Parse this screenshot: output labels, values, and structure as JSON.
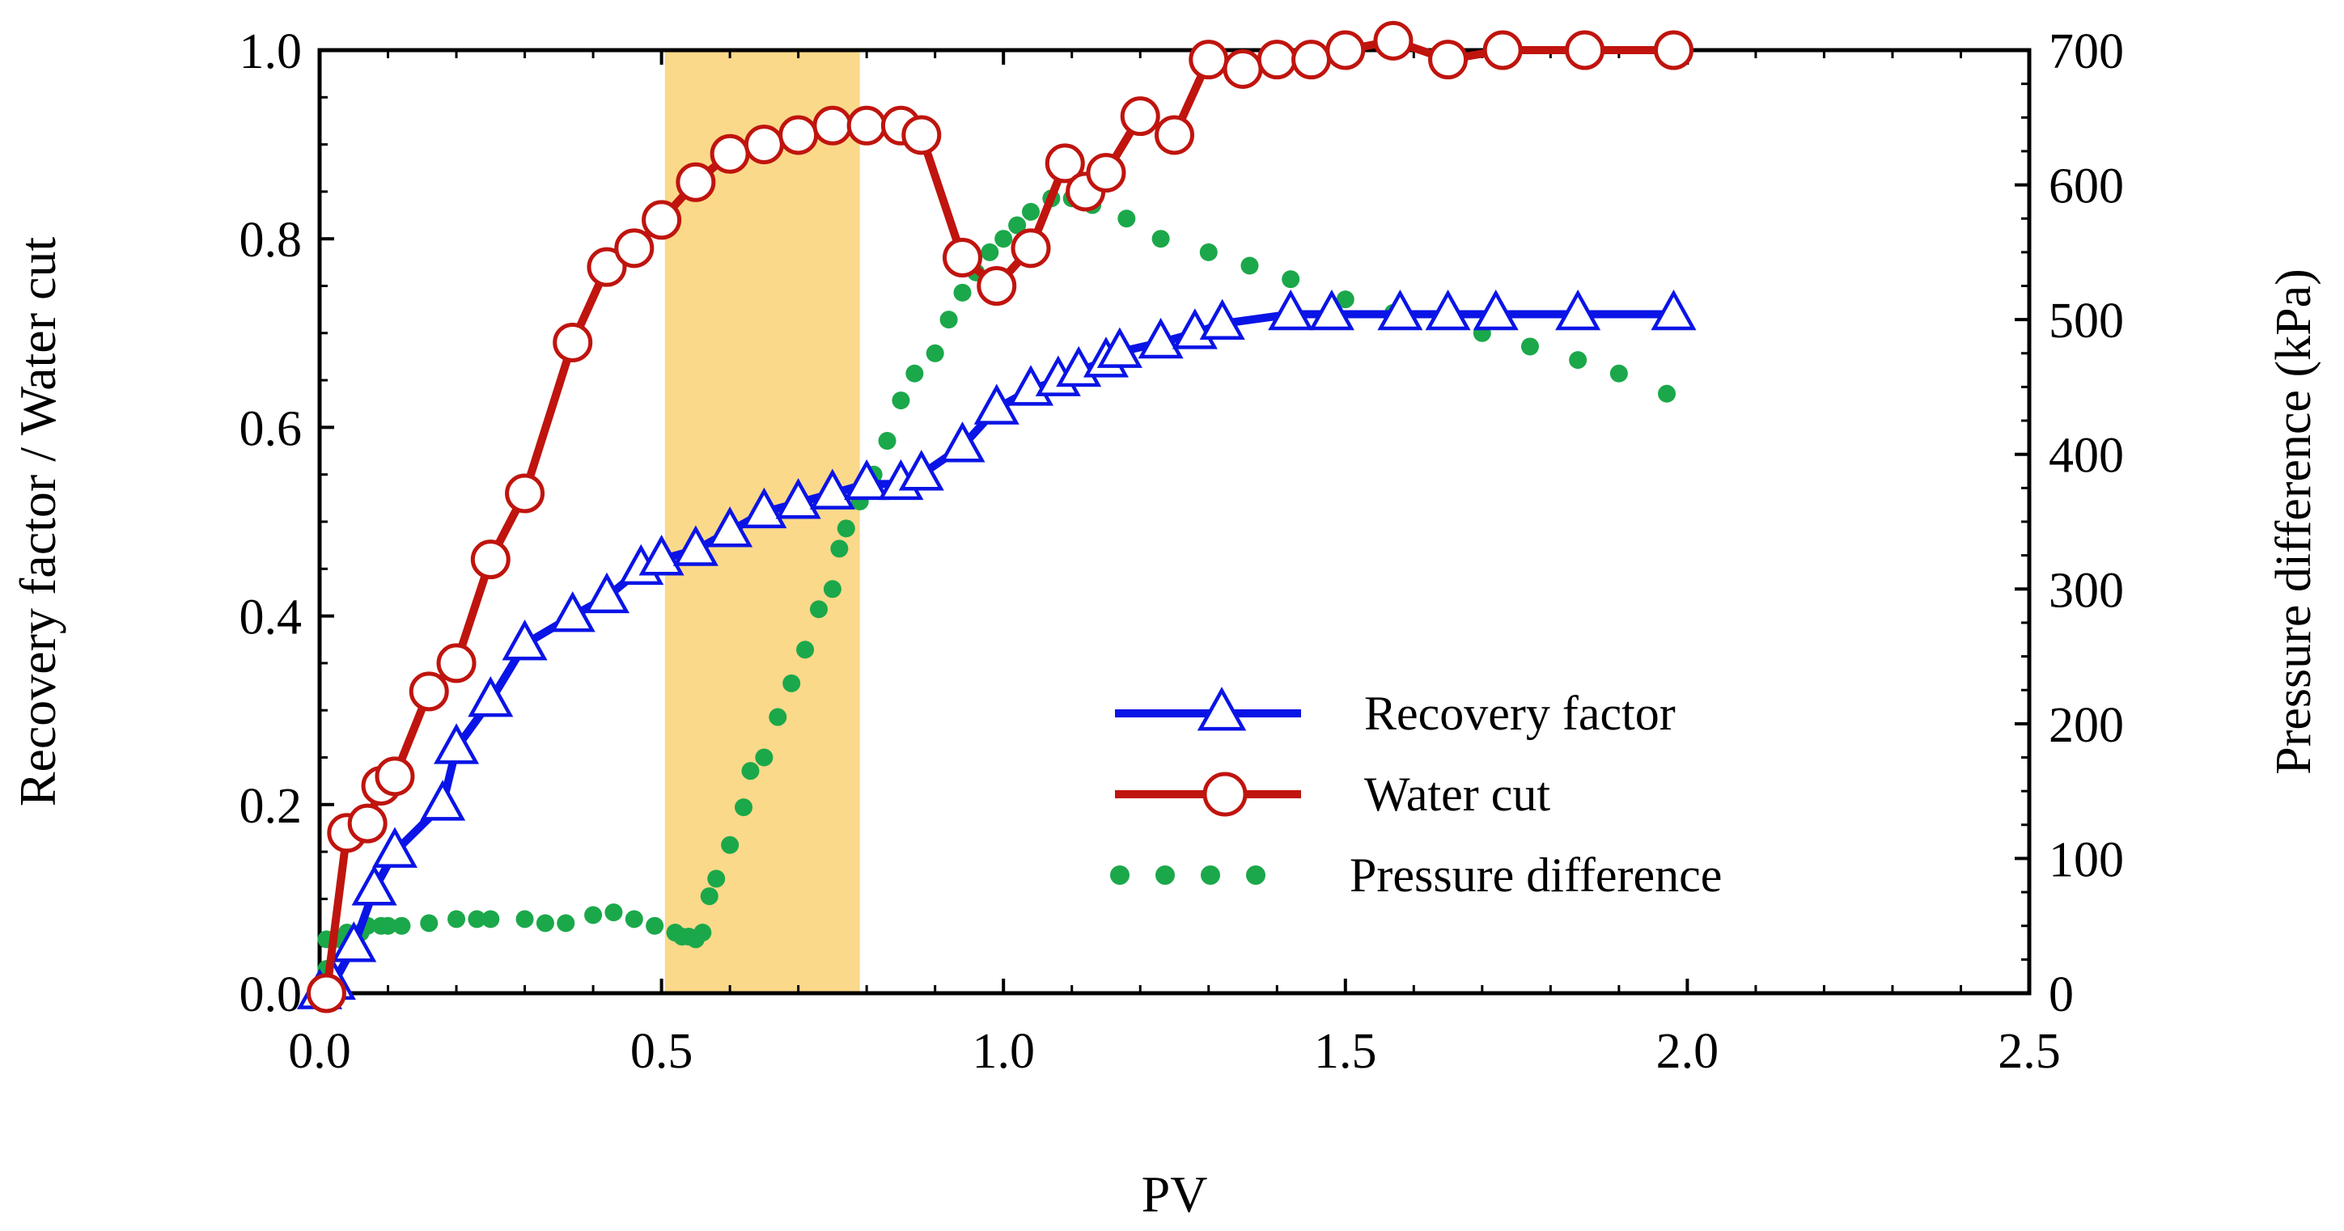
{
  "chart_data": {
    "type": "line",
    "title": "",
    "xlabel": "PV",
    "ylabel_left": "Recovery factor / Water cut",
    "ylabel_right": "Pressure difference (kPa)",
    "xlim": [
      0.0,
      2.5
    ],
    "ylim_left": [
      0.0,
      1.0
    ],
    "ylim_right": [
      0,
      700
    ],
    "x_ticks": [
      "0.0",
      "0.5",
      "1.0",
      "1.5",
      "2.0",
      "2.5"
    ],
    "y_left_ticks": [
      "0.0",
      "0.2",
      "0.4",
      "0.6",
      "0.8",
      "1.0"
    ],
    "y_right_ticks": [
      "0",
      "100",
      "200",
      "300",
      "400",
      "500",
      "600",
      "700"
    ],
    "highlight_band": {
      "x_start": 0.505,
      "x_end": 0.79,
      "color": "#fbd98a"
    },
    "legend_position": "lower-right",
    "series": [
      {
        "name": "Recovery factor",
        "axis": "left",
        "color": "#0a14e6",
        "marker": "triangle",
        "x": [
          0.0,
          0.02,
          0.05,
          0.08,
          0.11,
          0.18,
          0.2,
          0.25,
          0.3,
          0.37,
          0.42,
          0.47,
          0.5,
          0.55,
          0.6,
          0.65,
          0.7,
          0.75,
          0.8,
          0.85,
          0.88,
          0.94,
          0.99,
          1.04,
          1.08,
          1.11,
          1.15,
          1.17,
          1.23,
          1.28,
          1.32,
          1.42,
          1.48,
          1.58,
          1.65,
          1.72,
          1.84,
          1.98
        ],
        "values": [
          0.0,
          0.01,
          0.05,
          0.11,
          0.15,
          0.2,
          0.26,
          0.31,
          0.37,
          0.4,
          0.42,
          0.45,
          0.46,
          0.47,
          0.49,
          0.51,
          0.52,
          0.53,
          0.54,
          0.54,
          0.55,
          0.58,
          0.62,
          0.64,
          0.65,
          0.66,
          0.67,
          0.68,
          0.69,
          0.7,
          0.71,
          0.72,
          0.72,
          0.72,
          0.72,
          0.72,
          0.72,
          0.72
        ]
      },
      {
        "name": "Water cut",
        "axis": "left",
        "color": "#c0140e",
        "marker": "circle",
        "x": [
          0.01,
          0.04,
          0.07,
          0.09,
          0.11,
          0.16,
          0.2,
          0.25,
          0.3,
          0.37,
          0.42,
          0.46,
          0.5,
          0.55,
          0.6,
          0.65,
          0.7,
          0.75,
          0.8,
          0.85,
          0.88,
          0.94,
          0.99,
          1.04,
          1.09,
          1.12,
          1.15,
          1.2,
          1.25,
          1.3,
          1.35,
          1.4,
          1.45,
          1.5,
          1.57,
          1.65,
          1.73,
          1.85,
          1.98
        ],
        "values": [
          0.0,
          0.17,
          0.18,
          0.22,
          0.23,
          0.32,
          0.35,
          0.46,
          0.53,
          0.69,
          0.77,
          0.79,
          0.82,
          0.86,
          0.89,
          0.9,
          0.91,
          0.92,
          0.92,
          0.92,
          0.91,
          0.78,
          0.75,
          0.79,
          0.88,
          0.85,
          0.87,
          0.93,
          0.91,
          0.99,
          0.98,
          0.99,
          0.99,
          1.0,
          1.01,
          0.99,
          1.0,
          1.0,
          1.0
        ]
      },
      {
        "name": "Pressure difference",
        "axis": "right",
        "color": "#1ba84a",
        "marker": "dot",
        "x": [
          0.01,
          0.01,
          0.03,
          0.04,
          0.06,
          0.07,
          0.09,
          0.1,
          0.12,
          0.16,
          0.2,
          0.23,
          0.25,
          0.3,
          0.33,
          0.36,
          0.4,
          0.43,
          0.46,
          0.49,
          0.52,
          0.53,
          0.54,
          0.55,
          0.56,
          0.57,
          0.58,
          0.6,
          0.62,
          0.63,
          0.65,
          0.67,
          0.69,
          0.71,
          0.73,
          0.75,
          0.76,
          0.77,
          0.79,
          0.81,
          0.83,
          0.85,
          0.87,
          0.9,
          0.92,
          0.94,
          0.96,
          0.98,
          1.0,
          1.02,
          1.04,
          1.07,
          1.1,
          1.13,
          1.18,
          1.23,
          1.3,
          1.36,
          1.42,
          1.5,
          1.57,
          1.64,
          1.7,
          1.77,
          1.84,
          1.9,
          1.97
        ],
        "values": [
          18,
          40,
          40,
          45,
          45,
          50,
          50,
          50,
          50,
          52,
          55,
          55,
          55,
          55,
          52,
          52,
          58,
          60,
          55,
          50,
          45,
          42,
          42,
          40,
          45,
          72,
          85,
          110,
          138,
          165,
          175,
          205,
          230,
          255,
          285,
          300,
          330,
          345,
          365,
          385,
          410,
          440,
          460,
          475,
          500,
          520,
          535,
          550,
          560,
          570,
          580,
          590,
          590,
          585,
          575,
          560,
          550,
          540,
          530,
          515,
          505,
          500,
          490,
          480,
          470,
          460,
          445
        ]
      }
    ]
  }
}
